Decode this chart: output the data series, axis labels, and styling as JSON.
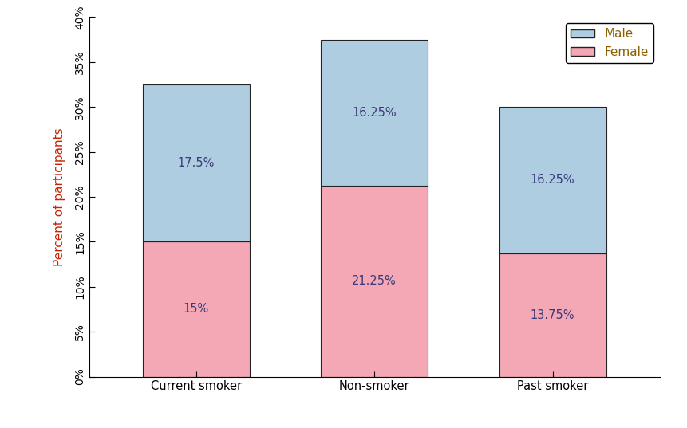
{
  "categories": [
    "Current smoker",
    "Non-smoker",
    "Past smoker"
  ],
  "female_values": [
    15.0,
    21.25,
    13.75
  ],
  "male_values": [
    17.5,
    16.25,
    16.25
  ],
  "female_color": "#F4A8B5",
  "male_color": "#AECDE1",
  "female_label": "Female",
  "male_label": "Male",
  "ylabel": "Percent of participants",
  "ylim": [
    0,
    40
  ],
  "yticks": [
    0,
    5,
    10,
    15,
    20,
    25,
    30,
    35,
    40
  ],
  "ytick_labels": [
    "0%",
    "5%",
    "10%",
    "15%",
    "20%",
    "25%",
    "30%",
    "35%",
    "40%"
  ],
  "bar_width": 0.6,
  "bar_positions": [
    0,
    1,
    2
  ],
  "edge_color": "#222222",
  "ylabel_color": "#CC2200",
  "text_color": "#3A3A7A",
  "xtick_color_default": "#1A1A6A",
  "xtick_color_highlight": "#CC8800",
  "background_color": "#ffffff",
  "legend_text_color": "#8B6000",
  "female_label_overrides": {
    "0": "15%",
    "1": "21.25%",
    "2": "13.75%"
  },
  "male_label_overrides": {
    "0": "17.5%",
    "1": "16.25%",
    "2": "16.25%"
  }
}
